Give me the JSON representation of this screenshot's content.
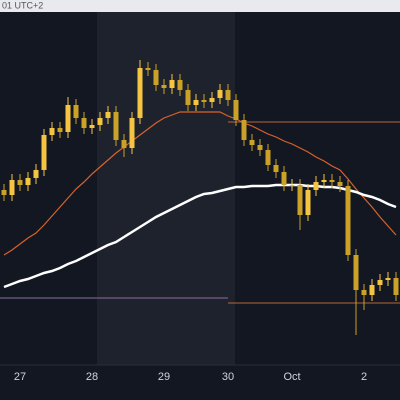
{
  "chart_data": {
    "type": "candlestick",
    "annotation": "01 UTC+2",
    "ylim": [
      0,
      353
    ],
    "categories": [
      null,
      null,
      "27",
      null,
      null,
      null,
      null,
      null,
      null,
      null,
      null,
      "28",
      null,
      null,
      null,
      null,
      null,
      null,
      null,
      null,
      "29",
      null,
      null,
      null,
      null,
      null,
      null,
      null,
      "30",
      null,
      null,
      null,
      null,
      null,
      null,
      null,
      "Oct",
      null,
      null,
      null,
      null,
      null,
      null,
      null,
      null,
      "2",
      null,
      null,
      null,
      null
    ],
    "up_color": "#f5c542",
    "down_color": "#c9a227",
    "open": [
      175,
      170,
      185,
      180,
      187,
      195,
      230,
      237,
      233,
      260,
      247,
      237,
      240,
      247,
      253,
      225,
      217,
      247,
      297,
      295,
      280,
      277,
      285,
      275,
      260,
      265,
      263,
      267,
      275,
      265,
      245,
      225,
      220,
      215,
      200,
      193,
      180,
      180,
      150,
      175,
      183,
      185,
      183,
      179,
      110,
      75,
      70,
      80,
      85,
      87
    ],
    "high": [
      181,
      191,
      191,
      193,
      201,
      236,
      243,
      243,
      268,
      266,
      253,
      246,
      253,
      259,
      259,
      231,
      253,
      305,
      303,
      301,
      286,
      291,
      291,
      281,
      271,
      271,
      273,
      281,
      281,
      271,
      251,
      231,
      226,
      221,
      206,
      199,
      186,
      186,
      181,
      189,
      191,
      191,
      189,
      185,
      116,
      81,
      86,
      91,
      93,
      93
    ],
    "low": [
      164,
      164,
      174,
      174,
      181,
      189,
      224,
      227,
      227,
      241,
      231,
      231,
      234,
      241,
      219,
      208,
      211,
      241,
      289,
      274,
      271,
      271,
      269,
      254,
      254,
      257,
      257,
      261,
      259,
      239,
      219,
      214,
      209,
      194,
      187,
      174,
      174,
      135,
      144,
      169,
      177,
      177,
      173,
      104,
      30,
      55,
      64,
      74,
      79,
      64
    ],
    "close": [
      170,
      185,
      180,
      187,
      195,
      230,
      237,
      233,
      260,
      247,
      237,
      240,
      247,
      253,
      225,
      217,
      247,
      297,
      295,
      280,
      277,
      285,
      275,
      260,
      265,
      263,
      267,
      275,
      265,
      245,
      225,
      220,
      215,
      200,
      193,
      180,
      180,
      150,
      175,
      183,
      185,
      183,
      179,
      110,
      75,
      70,
      80,
      85,
      87,
      70
    ],
    "lines": [
      {
        "color": "#d9622b",
        "values": [
          110,
          115,
          121,
          127,
          132,
          140,
          149,
          158,
          167,
          176,
          183,
          191,
          198,
          205,
          212,
          218,
          224,
          230,
          236,
          242,
          247,
          250,
          253,
          253,
          253,
          253,
          253,
          253,
          249,
          246,
          242,
          239,
          235,
          231,
          228,
          224,
          221,
          217,
          213,
          208,
          204,
          199,
          195,
          186,
          176,
          167,
          158,
          148,
          139,
          130
        ]
      },
      {
        "color": "#ffffff",
        "values": [
          78,
          81,
          84,
          86,
          89,
          92,
          94,
          97,
          101,
          104,
          108,
          112,
          116,
          120,
          123,
          128,
          133,
          138,
          143,
          148,
          152,
          156,
          160,
          164,
          168,
          171,
          172,
          174,
          176,
          178,
          178,
          179,
          179,
          179,
          180,
          180,
          180,
          180,
          179,
          179,
          178,
          178,
          177,
          175,
          173,
          170,
          168,
          165,
          161,
          158
        ]
      }
    ],
    "levels": [
      {
        "value": 243,
        "color": "#b5653a",
        "from": 28,
        "to": 49
      },
      {
        "value": 67,
        "color": "#8a6f9a",
        "from": 0,
        "to": 28
      },
      {
        "value": 62,
        "color": "#b5653a",
        "from": 28,
        "to": 49
      }
    ]
  }
}
